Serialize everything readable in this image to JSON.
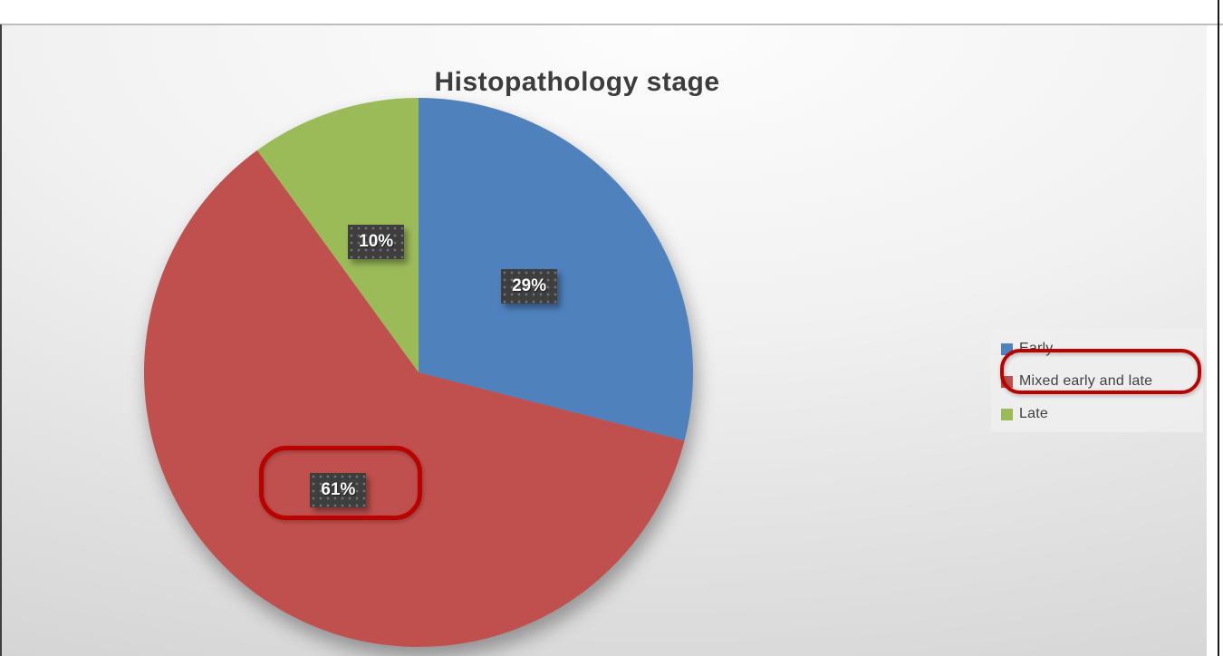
{
  "chart_data": {
    "type": "pie",
    "title": "Histopathology stage",
    "labels": [
      "Early",
      "Mixed early and late",
      "Late"
    ],
    "values": [
      29,
      61,
      10
    ],
    "data_labels": [
      "29%",
      "61%",
      "10%"
    ],
    "colors": [
      "#4f81bd",
      "#c0504d",
      "#9bbb59"
    ],
    "legend_position": "right",
    "start_angle_deg": 0,
    "direction": "clockwise"
  },
  "annotations": [
    {
      "target": "61% data label",
      "shape": "rounded-rect",
      "color": "#bb0000"
    },
    {
      "target": "legend item Mixed early and late",
      "shape": "rounded-rect",
      "color": "#bb0000"
    }
  ]
}
